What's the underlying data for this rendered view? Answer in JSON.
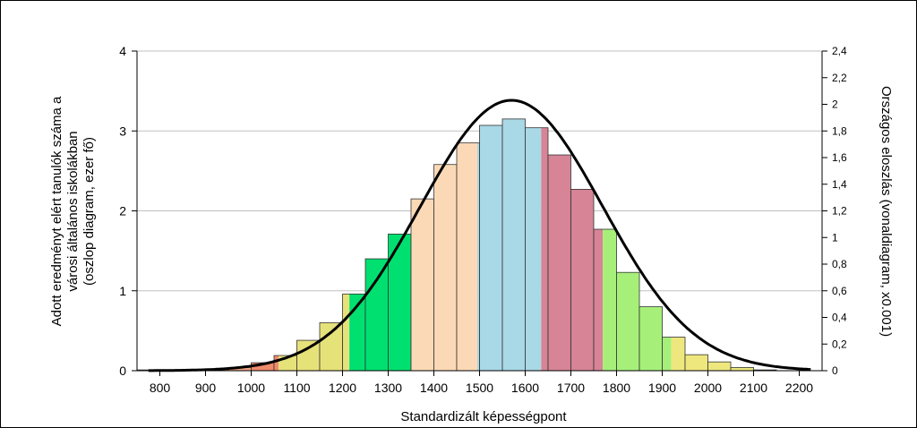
{
  "chart_data": {
    "type": "bar",
    "title": "",
    "xlabel": "Standardizált képességpont",
    "ylabel_lines": [
      "Adott eredményt elért tanulók száma a",
      "városi általános iskolákban",
      "(oszlop diagram, ezer fő)"
    ],
    "y2label": "Országos eloszlás (vonaldiagram, x0.001)",
    "xlim": [
      750,
      2250
    ],
    "ylim": [
      0,
      4
    ],
    "y2lim": [
      0,
      2.4
    ],
    "x_ticks": [
      "800",
      "900",
      "1000",
      "1100",
      "1200",
      "1300",
      "1400",
      "1500",
      "1600",
      "1700",
      "1800",
      "1900",
      "2000",
      "2100",
      "2200"
    ],
    "x_tick_values": [
      800,
      900,
      1000,
      1100,
      1200,
      1300,
      1400,
      1500,
      1600,
      1700,
      1800,
      1900,
      2000,
      2100,
      2200
    ],
    "y_ticks": [
      "0",
      "1",
      "2",
      "3",
      "4"
    ],
    "y_tick_values": [
      0,
      1,
      2,
      3,
      4
    ],
    "y2_ticks": [
      "0",
      "0,2",
      "0,4",
      "0,6",
      "0,8",
      "1",
      "1,2",
      "1,4",
      "1,6",
      "1,8",
      "2",
      "2,2",
      "2,4"
    ],
    "y2_tick_values": [
      0,
      0.2,
      0.4,
      0.6,
      0.8,
      1.0,
      1.2,
      1.4,
      1.6,
      1.8,
      2.0,
      2.2,
      2.4
    ],
    "grid": "horizontal",
    "bar_width": 50,
    "bars": [
      {
        "x": 775,
        "value": 0.01,
        "color": "#f4a582"
      },
      {
        "x": 825,
        "value": 0.01,
        "color": "#f4a582"
      },
      {
        "x": 875,
        "value": 0.01,
        "color": "#f4a582"
      },
      {
        "x": 925,
        "value": 0.02,
        "color": "#f4a582"
      },
      {
        "x": 975,
        "value": 0.04,
        "color": "#f4a582"
      },
      {
        "x": 1025,
        "value": 0.1,
        "color": "#f08a6c"
      },
      {
        "x": 1075,
        "value": 0.19,
        "color": "#f08a6c",
        "split": {
          "x": 1060,
          "color": "#e6e27a"
        }
      },
      {
        "x": 1125,
        "value": 0.38,
        "color": "#e6e27a"
      },
      {
        "x": 1175,
        "value": 0.6,
        "color": "#e6e27a"
      },
      {
        "x": 1225,
        "value": 0.96,
        "color": "#e6e27a",
        "split": {
          "x": 1215,
          "color": "#00e070"
        }
      },
      {
        "x": 1275,
        "value": 1.4,
        "color": "#00e070"
      },
      {
        "x": 1325,
        "value": 1.71,
        "color": "#00e070",
        "split": {
          "x": 1350,
          "color": "#fcd9b6"
        }
      },
      {
        "x": 1375,
        "value": 2.15,
        "color": "#fcd9b6"
      },
      {
        "x": 1425,
        "value": 2.58,
        "color": "#fcd9b6"
      },
      {
        "x": 1475,
        "value": 2.85,
        "color": "#fcd9b6",
        "split": {
          "x": 1495,
          "color": "#a9d8e6"
        }
      },
      {
        "x": 1525,
        "value": 3.07,
        "color": "#a9d8e6"
      },
      {
        "x": 1575,
        "value": 3.15,
        "color": "#a9d8e6"
      },
      {
        "x": 1625,
        "value": 3.04,
        "color": "#a9d8e6",
        "split": {
          "x": 1635,
          "color": "#d68496"
        }
      },
      {
        "x": 1675,
        "value": 2.7,
        "color": "#d68496"
      },
      {
        "x": 1725,
        "value": 2.27,
        "color": "#d68496"
      },
      {
        "x": 1775,
        "value": 1.77,
        "color": "#d68496",
        "split": {
          "x": 1770,
          "color": "#a6f07a"
        }
      },
      {
        "x": 1825,
        "value": 1.23,
        "color": "#a6f07a"
      },
      {
        "x": 1875,
        "value": 0.8,
        "color": "#a6f07a"
      },
      {
        "x": 1925,
        "value": 0.42,
        "color": "#a6f07a",
        "split": {
          "x": 1920,
          "color": "#eee77e"
        }
      },
      {
        "x": 1975,
        "value": 0.2,
        "color": "#eee77e"
      },
      {
        "x": 2025,
        "value": 0.11,
        "color": "#eee77e"
      },
      {
        "x": 2075,
        "value": 0.04,
        "color": "#eee77e"
      },
      {
        "x": 2125,
        "value": 0.01,
        "color": "#eee77e"
      },
      {
        "x": 2175,
        "value": 0.0,
        "color": "#eee77e"
      }
    ],
    "curve": {
      "type": "normal",
      "mean": 1570,
      "sd": 200,
      "peak": 2.03,
      "x_range": [
        775,
        2225
      ],
      "axis": "right"
    }
  }
}
